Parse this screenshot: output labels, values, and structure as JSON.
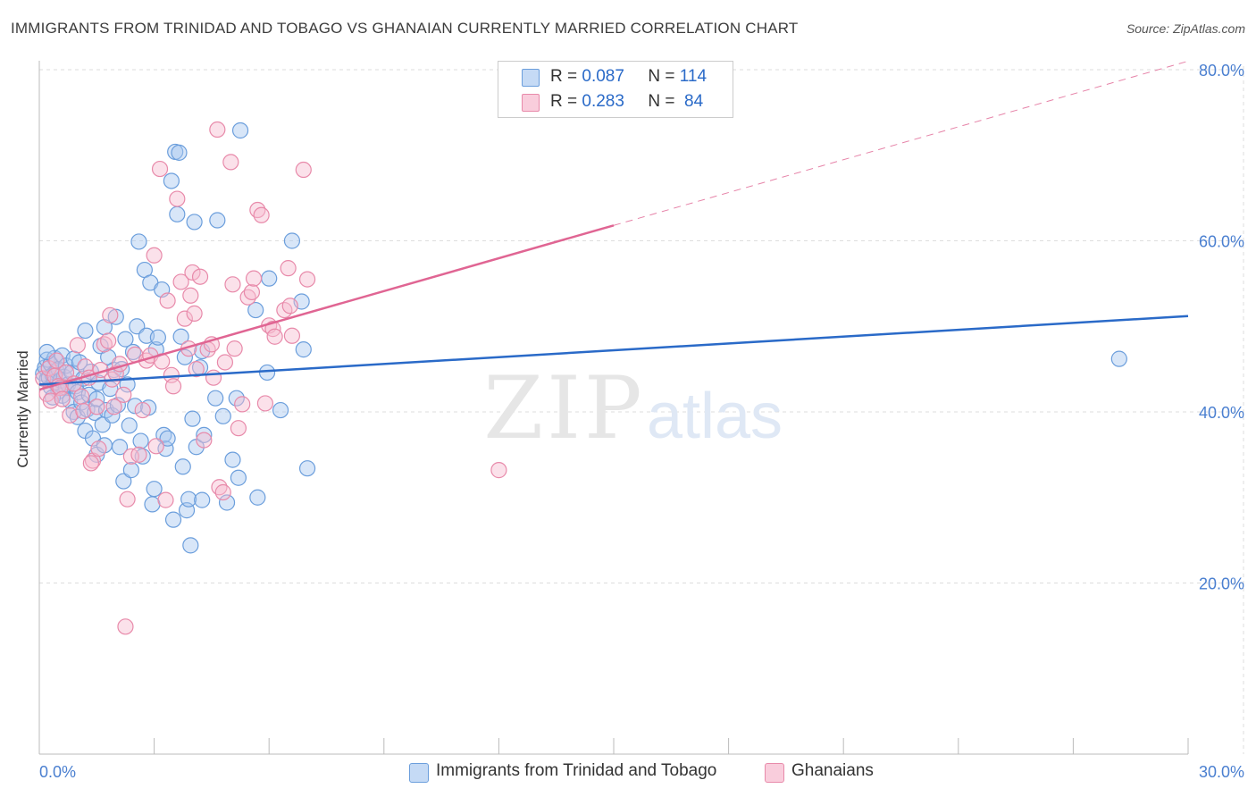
{
  "title": "IMMIGRANTS FROM TRINIDAD AND TOBAGO VS GHANAIAN CURRENTLY MARRIED CORRELATION CHART",
  "source": "Source: ZipAtlas.com",
  "watermark": {
    "zip": "ZIP",
    "atlas": "atlas"
  },
  "legend": {
    "r_label": "R =",
    "n_label": "N =",
    "series1": {
      "r": "0.087",
      "n": "114"
    },
    "series2": {
      "r": "0.283",
      "n": "84"
    }
  },
  "bottom_legend": {
    "series1": "Immigrants from Trinidad and Tobago",
    "series2": "Ghanaians"
  },
  "colors": {
    "blue_fill": "#a9c8f0",
    "blue_stroke": "#6b9edc",
    "blue_line": "#2a6ac8",
    "pink_fill": "#f7bcd0",
    "pink_stroke": "#e88aaa",
    "pink_line": "#e06593",
    "axis_text": "#4a7fd0",
    "grid": "#dddddd"
  },
  "chart_data": {
    "type": "scatter",
    "title": "IMMIGRANTS FROM TRINIDAD AND TOBAGO VS GHANAIAN CURRENTLY MARRIED CORRELATION CHART",
    "xlabel": "",
    "ylabel": "Currently Married",
    "xlim": [
      0,
      30
    ],
    "ylim": [
      0,
      80
    ],
    "x_tick_labels": [
      "0.0%",
      "30.0%"
    ],
    "y_ticks": [
      20,
      40,
      60,
      80
    ],
    "y_tick_labels": [
      "20.0%",
      "40.0%",
      "60.0%",
      "80.0%"
    ],
    "grid": true,
    "series": [
      {
        "name": "Immigrants from Trinidad and Tobago",
        "color": "#6b9edc",
        "trend": {
          "x": [
            0,
            30
          ],
          "y": [
            43.2,
            51.2
          ],
          "style": "solid"
        },
        "points": [
          [
            0.1,
            44.5
          ],
          [
            0.15,
            45.2
          ],
          [
            0.2,
            43.8
          ],
          [
            0.2,
            46.1
          ],
          [
            0.25,
            44.0
          ],
          [
            0.3,
            42.9
          ],
          [
            0.3,
            45.6
          ],
          [
            0.35,
            44.3
          ],
          [
            0.4,
            43.5
          ],
          [
            0.4,
            46.3
          ],
          [
            0.45,
            44.8
          ],
          [
            0.5,
            42.4
          ],
          [
            0.5,
            45.0
          ],
          [
            0.55,
            43.7
          ],
          [
            0.6,
            41.9
          ],
          [
            0.6,
            46.6
          ],
          [
            0.65,
            44.1
          ],
          [
            0.7,
            42.8
          ],
          [
            0.7,
            45.4
          ],
          [
            0.75,
            43.2
          ],
          [
            0.8,
            41.3
          ],
          [
            0.85,
            44.6
          ],
          [
            0.9,
            46.2
          ],
          [
            0.9,
            40.0
          ],
          [
            0.95,
            43.0
          ],
          [
            1.0,
            42.3
          ],
          [
            1.0,
            39.4
          ],
          [
            1.05,
            45.8
          ],
          [
            1.1,
            41.1
          ],
          [
            1.15,
            43.9
          ],
          [
            1.2,
            49.5
          ],
          [
            1.2,
            37.8
          ],
          [
            1.25,
            40.3
          ],
          [
            1.3,
            42.0
          ],
          [
            1.35,
            44.7
          ],
          [
            1.4,
            36.9
          ],
          [
            1.45,
            39.9
          ],
          [
            1.5,
            41.5
          ],
          [
            1.5,
            35.0
          ],
          [
            1.55,
            43.4
          ],
          [
            1.6,
            47.7
          ],
          [
            1.65,
            38.5
          ],
          [
            1.7,
            49.9
          ],
          [
            1.7,
            36.1
          ],
          [
            1.75,
            40.2
          ],
          [
            1.8,
            46.4
          ],
          [
            1.85,
            42.7
          ],
          [
            1.9,
            39.6
          ],
          [
            1.95,
            44.9
          ],
          [
            2.0,
            51.1
          ],
          [
            2.05,
            40.8
          ],
          [
            2.1,
            35.9
          ],
          [
            2.15,
            45.0
          ],
          [
            2.2,
            31.9
          ],
          [
            2.25,
            48.5
          ],
          [
            2.3,
            43.2
          ],
          [
            2.35,
            38.4
          ],
          [
            2.4,
            33.2
          ],
          [
            2.45,
            47.0
          ],
          [
            2.5,
            40.7
          ],
          [
            2.55,
            50.0
          ],
          [
            2.6,
            59.9
          ],
          [
            2.65,
            36.6
          ],
          [
            2.7,
            34.8
          ],
          [
            2.75,
            56.6
          ],
          [
            2.8,
            48.9
          ],
          [
            2.85,
            40.5
          ],
          [
            2.9,
            55.1
          ],
          [
            2.95,
            29.2
          ],
          [
            3.0,
            31.0
          ],
          [
            3.05,
            47.3
          ],
          [
            3.1,
            48.7
          ],
          [
            3.2,
            54.3
          ],
          [
            3.25,
            37.3
          ],
          [
            3.3,
            35.7
          ],
          [
            3.35,
            36.9
          ],
          [
            3.45,
            67.0
          ],
          [
            3.5,
            27.4
          ],
          [
            3.55,
            70.4
          ],
          [
            3.6,
            63.1
          ],
          [
            3.65,
            70.3
          ],
          [
            3.7,
            48.8
          ],
          [
            3.75,
            33.6
          ],
          [
            3.8,
            46.4
          ],
          [
            3.85,
            28.5
          ],
          [
            3.9,
            29.8
          ],
          [
            3.95,
            24.4
          ],
          [
            4.0,
            39.2
          ],
          [
            4.05,
            62.2
          ],
          [
            4.1,
            35.9
          ],
          [
            4.2,
            45.2
          ],
          [
            4.25,
            47.1
          ],
          [
            4.3,
            37.3
          ],
          [
            4.25,
            29.7
          ],
          [
            4.6,
            41.6
          ],
          [
            4.65,
            62.4
          ],
          [
            4.8,
            39.5
          ],
          [
            4.9,
            29.4
          ],
          [
            5.05,
            34.4
          ],
          [
            5.15,
            41.6
          ],
          [
            5.2,
            32.3
          ],
          [
            5.25,
            72.9
          ],
          [
            5.65,
            51.9
          ],
          [
            5.7,
            30.0
          ],
          [
            5.95,
            44.6
          ],
          [
            6.0,
            55.6
          ],
          [
            6.3,
            40.2
          ],
          [
            6.6,
            60.0
          ],
          [
            6.85,
            52.9
          ],
          [
            6.9,
            47.3
          ],
          [
            7.0,
            33.4
          ],
          [
            0.2,
            47.0
          ],
          [
            0.35,
            41.7
          ],
          [
            28.2,
            46.2
          ]
        ]
      },
      {
        "name": "Ghanaians",
        "color": "#e88aaa",
        "trend": {
          "x": [
            0,
            15
          ],
          "y": [
            42.6,
            61.8
          ],
          "style": "solid",
          "extension": {
            "x": [
              15,
              30
            ],
            "y": [
              61.8,
              81.0
            ],
            "style": "dashed"
          }
        },
        "points": [
          [
            0.1,
            43.9
          ],
          [
            0.2,
            42.1
          ],
          [
            0.25,
            45.1
          ],
          [
            0.3,
            41.3
          ],
          [
            0.4,
            44.2
          ],
          [
            0.45,
            46.0
          ],
          [
            0.5,
            43.0
          ],
          [
            0.55,
            42.8
          ],
          [
            0.6,
            41.5
          ],
          [
            0.7,
            44.6
          ],
          [
            0.8,
            39.6
          ],
          [
            0.9,
            43.3
          ],
          [
            1.0,
            47.8
          ],
          [
            1.1,
            41.8
          ],
          [
            1.15,
            40.1
          ],
          [
            1.2,
            45.3
          ],
          [
            1.3,
            44.0
          ],
          [
            1.4,
            34.3
          ],
          [
            1.5,
            40.6
          ],
          [
            1.55,
            35.7
          ],
          [
            1.6,
            44.9
          ],
          [
            1.7,
            47.9
          ],
          [
            1.8,
            48.3
          ],
          [
            1.85,
            51.3
          ],
          [
            1.9,
            43.8
          ],
          [
            1.95,
            40.6
          ],
          [
            2.0,
            44.5
          ],
          [
            2.1,
            45.6
          ],
          [
            2.2,
            42.0
          ],
          [
            2.3,
            29.8
          ],
          [
            2.4,
            34.8
          ],
          [
            2.5,
            46.7
          ],
          [
            2.6,
            35.0
          ],
          [
            2.7,
            40.2
          ],
          [
            2.8,
            46.0
          ],
          [
            2.9,
            46.6
          ],
          [
            3.0,
            58.3
          ],
          [
            3.05,
            36.0
          ],
          [
            3.15,
            68.4
          ],
          [
            3.2,
            45.9
          ],
          [
            3.3,
            29.7
          ],
          [
            3.35,
            53.0
          ],
          [
            3.45,
            44.3
          ],
          [
            3.5,
            43.0
          ],
          [
            3.6,
            64.9
          ],
          [
            3.7,
            55.2
          ],
          [
            3.8,
            50.9
          ],
          [
            3.9,
            47.4
          ],
          [
            3.95,
            53.6
          ],
          [
            4.0,
            56.3
          ],
          [
            4.05,
            51.5
          ],
          [
            4.1,
            45.0
          ],
          [
            4.2,
            55.8
          ],
          [
            4.3,
            36.7
          ],
          [
            4.4,
            47.3
          ],
          [
            4.5,
            47.9
          ],
          [
            4.55,
            44.0
          ],
          [
            4.65,
            73.0
          ],
          [
            4.7,
            31.2
          ],
          [
            4.8,
            30.6
          ],
          [
            4.85,
            45.8
          ],
          [
            5.0,
            69.2
          ],
          [
            5.05,
            54.9
          ],
          [
            5.1,
            47.4
          ],
          [
            5.2,
            38.1
          ],
          [
            5.3,
            40.9
          ],
          [
            5.45,
            53.4
          ],
          [
            5.55,
            54.0
          ],
          [
            5.6,
            55.6
          ],
          [
            5.7,
            63.6
          ],
          [
            5.8,
            63.0
          ],
          [
            5.9,
            41.0
          ],
          [
            6.0,
            50.1
          ],
          [
            6.1,
            49.7
          ],
          [
            6.15,
            48.8
          ],
          [
            6.4,
            51.9
          ],
          [
            6.5,
            56.8
          ],
          [
            6.55,
            52.4
          ],
          [
            6.6,
            48.9
          ],
          [
            7.0,
            55.5
          ],
          [
            6.9,
            68.3
          ],
          [
            12.0,
            33.2
          ],
          [
            2.25,
            14.9
          ],
          [
            1.35,
            34.0
          ]
        ]
      }
    ]
  }
}
